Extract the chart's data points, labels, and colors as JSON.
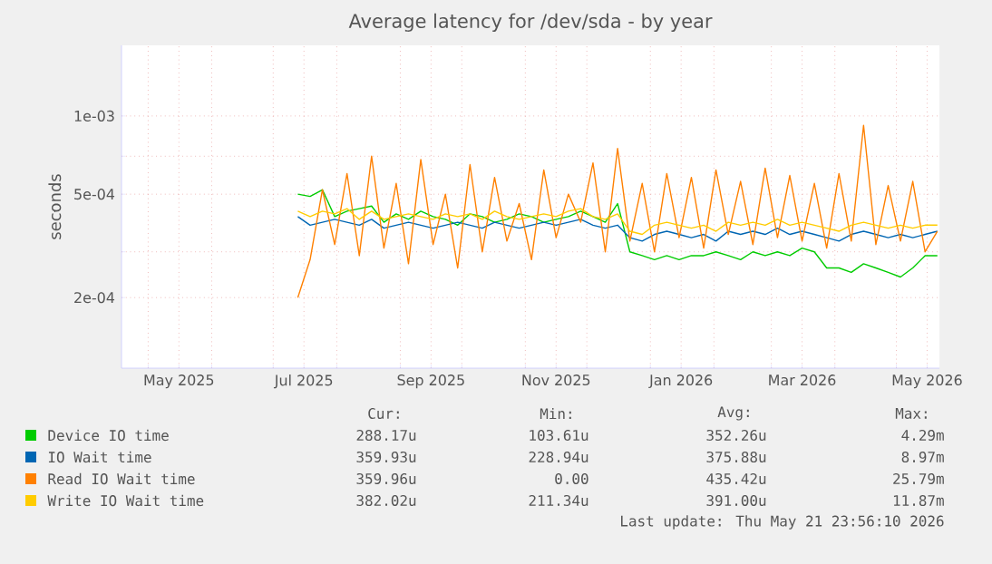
{
  "chart_data": {
    "type": "line",
    "title": "Average latency for /dev/sda - by year",
    "ylabel": "seconds",
    "log": "y",
    "grid": true,
    "legend": "bottom",
    "line_style": "solid",
    "xlim": [
      "2025-04-18",
      "2026-05-22"
    ],
    "ylim": [
      0.000107,
      0.00187
    ],
    "yticks": [
      {
        "value": 0.0002,
        "label": "2e-04"
      },
      {
        "value": 0.0003,
        "label": null
      },
      {
        "value": 0.0005,
        "label": "5e-04"
      },
      {
        "value": 0.0007,
        "label": null
      },
      {
        "value": 0.001,
        "label": "1e-03"
      }
    ],
    "xticks": [
      {
        "value": "2025-05-01",
        "label": null
      },
      {
        "value": "2025-05-16",
        "label": "May 2025"
      },
      {
        "value": "2025-06-01",
        "label": null
      },
      {
        "value": "2025-07-01",
        "label": null
      },
      {
        "value": "2025-07-16",
        "label": "Jul 2025"
      },
      {
        "value": "2025-08-01",
        "label": null
      },
      {
        "value": "2025-09-01",
        "label": null
      },
      {
        "value": "2025-09-16",
        "label": "Sep 2025"
      },
      {
        "value": "2025-10-01",
        "label": null
      },
      {
        "value": "2025-11-01",
        "label": null
      },
      {
        "value": "2025-11-16",
        "label": "Nov 2025"
      },
      {
        "value": "2025-12-01",
        "label": null
      },
      {
        "value": "2026-01-01",
        "label": null
      },
      {
        "value": "2026-01-16",
        "label": "Jan 2026"
      },
      {
        "value": "2026-02-01",
        "label": null
      },
      {
        "value": "2026-03-01",
        "label": null
      },
      {
        "value": "2026-03-16",
        "label": "Mar 2026"
      },
      {
        "value": "2026-04-01",
        "label": null
      },
      {
        "value": "2026-05-01",
        "label": null
      },
      {
        "value": "2026-05-16",
        "label": "May 2026"
      }
    ],
    "x": [
      "2025-07-13",
      "2025-07-19",
      "2025-07-25",
      "2025-07-31",
      "2025-08-06",
      "2025-08-12",
      "2025-08-18",
      "2025-08-24",
      "2025-08-30",
      "2025-09-05",
      "2025-09-11",
      "2025-09-17",
      "2025-09-23",
      "2025-09-29",
      "2025-10-05",
      "2025-10-11",
      "2025-10-17",
      "2025-10-23",
      "2025-10-29",
      "2025-11-04",
      "2025-11-10",
      "2025-11-16",
      "2025-11-22",
      "2025-11-28",
      "2025-12-04",
      "2025-12-10",
      "2025-12-16",
      "2025-12-22",
      "2025-12-28",
      "2026-01-03",
      "2026-01-09",
      "2026-01-15",
      "2026-01-21",
      "2026-01-27",
      "2026-02-02",
      "2026-02-08",
      "2026-02-14",
      "2026-02-20",
      "2026-02-26",
      "2026-03-04",
      "2026-03-10",
      "2026-03-16",
      "2026-03-22",
      "2026-03-28",
      "2026-04-03",
      "2026-04-09",
      "2026-04-15",
      "2026-04-21",
      "2026-04-27",
      "2026-05-03",
      "2026-05-09",
      "2026-05-15",
      "2026-05-21"
    ],
    "series": [
      {
        "name": "Device IO time",
        "color": "#00cc00",
        "values": [
          0.0005,
          0.00049,
          0.00052,
          0.00041,
          0.00043,
          0.00044,
          0.00045,
          0.00039,
          0.00042,
          0.0004,
          0.00043,
          0.00041,
          0.0004,
          0.00038,
          0.00042,
          0.00041,
          0.00039,
          0.0004,
          0.00042,
          0.00041,
          0.00039,
          0.0004,
          0.00041,
          0.00043,
          0.00041,
          0.00039,
          0.00046,
          0.0003,
          0.00029,
          0.00028,
          0.00029,
          0.00028,
          0.00029,
          0.00029,
          0.0003,
          0.00029,
          0.00028,
          0.0003,
          0.00029,
          0.0003,
          0.00029,
          0.00031,
          0.0003,
          0.00026,
          0.00026,
          0.00025,
          0.00027,
          0.00026,
          0.00025,
          0.00024,
          0.00026,
          0.00029,
          0.00029
        ]
      },
      {
        "name": "IO Wait time",
        "color": "#0066b3",
        "values": [
          0.00041,
          0.00038,
          0.00039,
          0.0004,
          0.00039,
          0.00038,
          0.0004,
          0.00037,
          0.00038,
          0.00039,
          0.00038,
          0.00037,
          0.00038,
          0.00039,
          0.00038,
          0.00037,
          0.00039,
          0.00038,
          0.00037,
          0.00038,
          0.00039,
          0.00038,
          0.00039,
          0.0004,
          0.00038,
          0.00037,
          0.00038,
          0.00034,
          0.00033,
          0.00035,
          0.00036,
          0.00035,
          0.00034,
          0.00035,
          0.00033,
          0.00036,
          0.00035,
          0.00036,
          0.00035,
          0.00037,
          0.00035,
          0.00036,
          0.00035,
          0.00034,
          0.00033,
          0.00035,
          0.00036,
          0.00035,
          0.00034,
          0.00035,
          0.00034,
          0.00035,
          0.00036
        ]
      },
      {
        "name": "Read IO Wait time",
        "color": "#ff8000",
        "values": [
          0.0002,
          0.00028,
          0.00052,
          0.00032,
          0.0006,
          0.00029,
          0.0007,
          0.00031,
          0.00055,
          0.00027,
          0.00068,
          0.00032,
          0.0005,
          0.00026,
          0.00065,
          0.0003,
          0.00058,
          0.00033,
          0.00046,
          0.00028,
          0.00062,
          0.00034,
          0.0005,
          0.00039,
          0.00066,
          0.0003,
          0.00075,
          0.00033,
          0.00055,
          0.0003,
          0.0006,
          0.00034,
          0.00058,
          0.00031,
          0.00062,
          0.00035,
          0.00056,
          0.00032,
          0.00063,
          0.00034,
          0.00059,
          0.00033,
          0.00055,
          0.00031,
          0.0006,
          0.00033,
          0.00092,
          0.00032,
          0.00054,
          0.00033,
          0.00056,
          0.0003,
          0.00036
        ]
      },
      {
        "name": "Write IO Wait time",
        "color": "#ffcc00",
        "values": [
          0.00043,
          0.00041,
          0.00043,
          0.00042,
          0.00044,
          0.0004,
          0.00043,
          0.0004,
          0.00041,
          0.00042,
          0.00041,
          0.0004,
          0.00042,
          0.00041,
          0.00042,
          0.0004,
          0.00043,
          0.00041,
          0.0004,
          0.00041,
          0.00042,
          0.00041,
          0.00043,
          0.00044,
          0.00041,
          0.0004,
          0.00042,
          0.00036,
          0.00035,
          0.00038,
          0.00039,
          0.00038,
          0.00037,
          0.00038,
          0.00036,
          0.00039,
          0.00038,
          0.00039,
          0.00038,
          0.0004,
          0.00038,
          0.00039,
          0.00038,
          0.00037,
          0.00036,
          0.00038,
          0.00039,
          0.00038,
          0.00037,
          0.00038,
          0.00037,
          0.00038,
          0.00038
        ]
      }
    ],
    "annotations": [
      "Cur:",
      "Min:",
      "Avg:",
      "Max:",
      "288.17u",
      "103.61u",
      "352.26u",
      "4.29m",
      "359.93u",
      "228.94u",
      "375.88u",
      "8.97m",
      "359.96u",
      "0.00",
      "435.42u",
      "25.79m",
      "382.02u",
      "211.34u",
      "391.00u",
      "11.87m",
      "Last update: Thu May 21 23:56:10 2026"
    ]
  }
}
